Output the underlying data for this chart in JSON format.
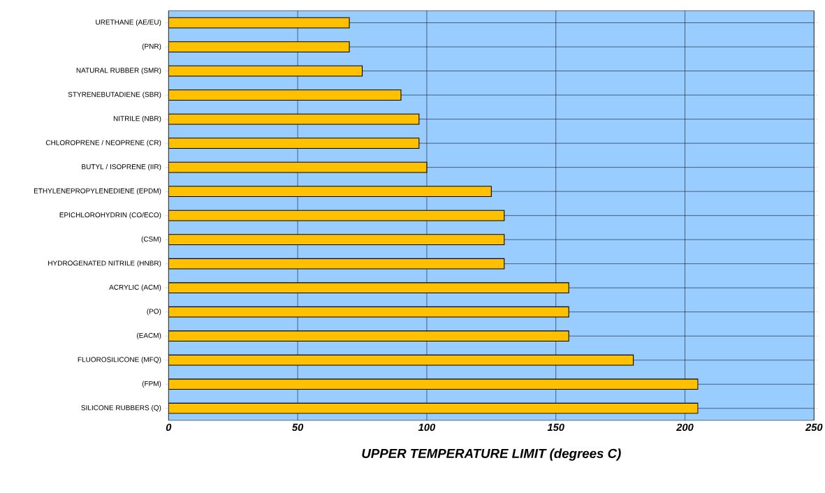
{
  "chart_data": {
    "type": "bar",
    "orientation": "horizontal",
    "xlabel": "UPPER TEMPERATURE LIMIT (degrees C)",
    "categories": [
      "URETHANE (AE/EU)",
      "(PNR)",
      "NATURAL RUBBER (SMR)",
      "STYRENEBUTADIENE (SBR)",
      "NITRILE (NBR)",
      "CHLOROPRENE / NEOPRENE (CR)",
      "BUTYL / ISOPRENE (IIR)",
      "ETHYLENEPROPYLENEDIENE (EPDM)",
      "EPICHLOROHYDRIN (CO/ECO)",
      "(CSM)",
      "HYDROGENATED NITRILE (HNBR)",
      "ACRYLIC  (ACM)",
      "(PO)",
      "(EACM)",
      "FLUOROSILICONE (MFQ)",
      "(FPM)",
      "SILICONE RUBBERS (Q)"
    ],
    "values": [
      70,
      70,
      75,
      90,
      97,
      97,
      100,
      125,
      130,
      130,
      130,
      155,
      155,
      155,
      180,
      205,
      205
    ],
    "color": "#ffc000",
    "xlim": [
      0,
      250
    ],
    "xticks": [
      0,
      50,
      100,
      150,
      200,
      250
    ],
    "grid": true
  }
}
